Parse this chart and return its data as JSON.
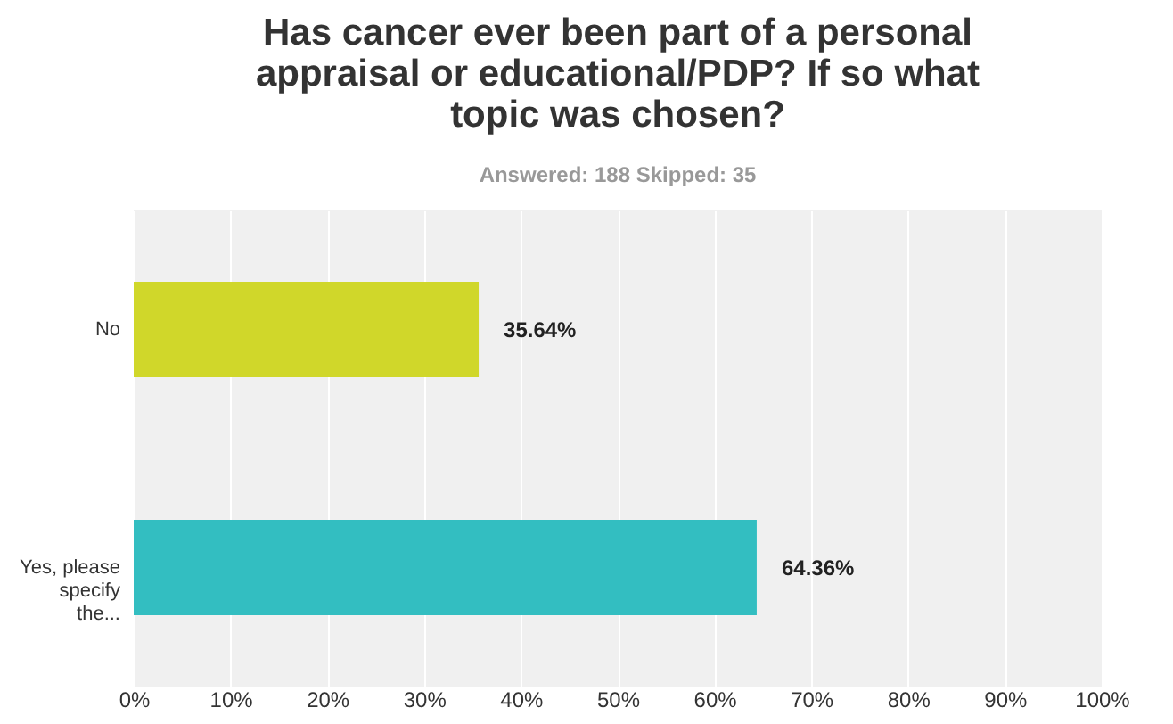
{
  "chart_data": {
    "type": "bar",
    "orientation": "horizontal",
    "title": "Has cancer ever been part of a personal appraisal or educational/PDP? If so what topic was chosen?",
    "subtitle": "Answered: 188    Skipped: 35",
    "categories": [
      "No",
      "Yes, please specify the..."
    ],
    "values": [
      35.64,
      64.36
    ],
    "colors": [
      "#d0d72a",
      "#33bec1"
    ],
    "value_labels": [
      "35.64%",
      "64.36%"
    ],
    "xlim": [
      0,
      100
    ],
    "xticks": [
      {
        "value": 0,
        "label": "0%"
      },
      {
        "value": 10,
        "label": "10%"
      },
      {
        "value": 20,
        "label": "20%"
      },
      {
        "value": 30,
        "label": "30%"
      },
      {
        "value": 40,
        "label": "40%"
      },
      {
        "value": 50,
        "label": "50%"
      },
      {
        "value": 60,
        "label": "60%"
      },
      {
        "value": 70,
        "label": "70%"
      },
      {
        "value": 80,
        "label": "80%"
      },
      {
        "value": 90,
        "label": "90%"
      },
      {
        "value": 100,
        "label": "100%"
      }
    ],
    "grid": "x"
  }
}
